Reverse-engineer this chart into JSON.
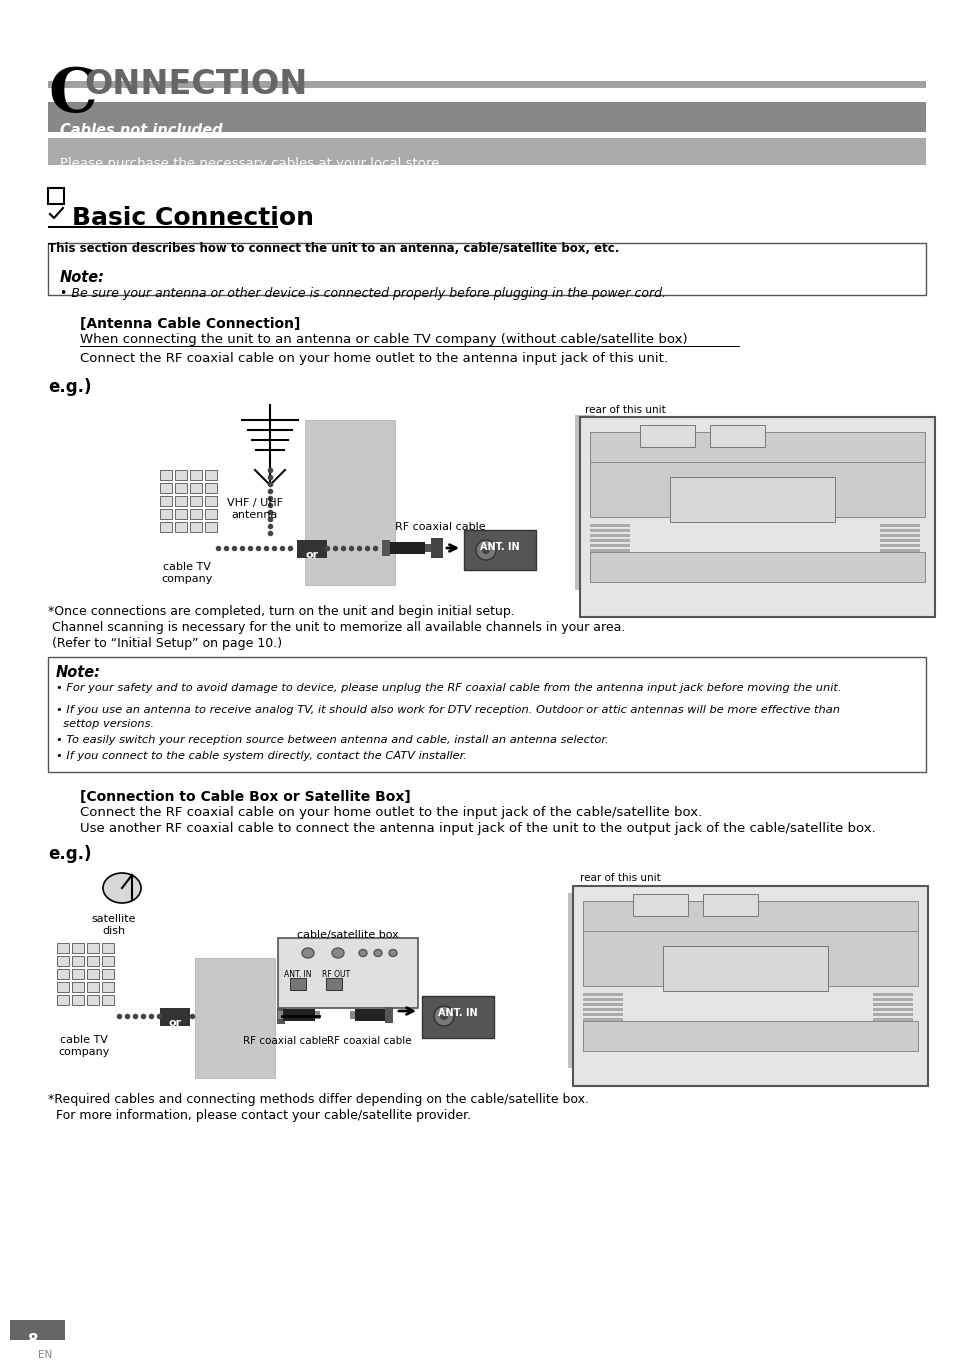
{
  "title_C": "C",
  "title_rest": "ONNECTION",
  "cables_not_included": "Cables not included.",
  "please_purchase": "Please purchase the necessary cables at your local store.",
  "section_title": "Basic Connection",
  "section_desc": "This section describes how to connect the unit to an antenna, cable/satellite box, etc.",
  "note1_title": "Note:",
  "note1_body": "• Be sure your antenna or other device is connected properly before plugging in the power cord.",
  "antenna_section_title": "[Antenna Cable Connection]",
  "antenna_line1": "When connecting the unit to an antenna or cable TV company (without cable/satellite box)",
  "antenna_line2": "Connect the RF coaxial cable on your home outlet to the antenna input jack of this unit.",
  "eg_label": "e.g.)",
  "vhf_label": "VHF / UHF\nantenna",
  "rf_coaxial_label": "RF coaxial cable",
  "ant_in_label": "ANT. IN",
  "rear_label": "rear of this unit",
  "cable_tv_label": "cable TV\ncompany",
  "or_label": "or",
  "once_connections": "*Once connections are completed, turn on the unit and begin initial setup.",
  "channel_scanning": " Channel scanning is necessary for the unit to memorize all available channels in your area.",
  "refer_to": " (Refer to “Initial Setup” on page 10.)",
  "note2_title": "Note:",
  "note2_b1": "• For your safety and to avoid damage to device, please unplug the RF coaxial cable from the antenna input jack before moving the unit.",
  "note2_b2": "• If you use an antenna to receive analog TV, it should also work for DTV reception. Outdoor or attic antennas will be more effective than",
  "note2_b2b": "  settop versions.",
  "note2_b3": "• To easily switch your reception source between antenna and cable, install an antenna selector.",
  "note2_b4": "• If you connect to the cable system directly, contact the CATV installer.",
  "cable_box_title": "[Connection to Cable Box or Satellite Box]",
  "cable_box_line1": "Connect the RF coaxial cable on your home outlet to the input jack of the cable/satellite box.",
  "cable_box_line2": "Use another RF coaxial cable to connect the antenna input jack of the unit to the output jack of the cable/satellite box.",
  "eg2_label": "e.g.)",
  "satellite_label": "satellite\ndish",
  "cable_satellite_box_label": "cable/satellite box",
  "ant_in2_label": "ANT. IN  RF OUT",
  "ant_in3_label": "ANT. IN",
  "rear2_label": "rear of this unit",
  "cable_tv2_label": "cable TV\ncompany",
  "rf_coaxial2_label": "RF coaxial cable",
  "rf_coaxial3_label": "RF coaxial cable",
  "required_cables": "*Required cables and connecting methods differ depending on the cable/satellite box.",
  "for_more": "  For more information, please contact your cable/satellite provider.",
  "page_num": "8",
  "page_lang": "EN",
  "bg_color": "#ffffff",
  "gray_bar1": "#888888",
  "gray_bar2": "#999999",
  "dark_gray": "#555555",
  "light_gray": "#c8c8c8",
  "note_border": "#555555"
}
